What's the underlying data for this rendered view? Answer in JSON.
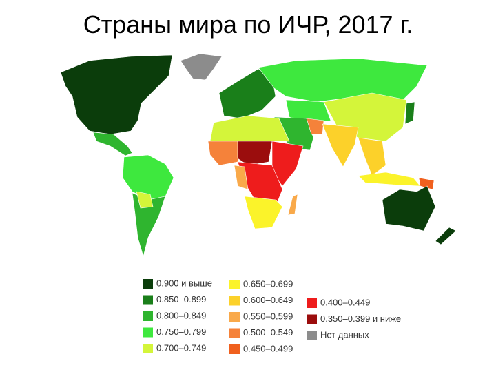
{
  "title": "Страны мира по ИЧР, 2017 г.",
  "legend": [
    {
      "label": "0.900 и выше",
      "color": "#0b3d0b"
    },
    {
      "label": "0.850–0.899",
      "color": "#1a7f1a"
    },
    {
      "label": "0.800–0.849",
      "color": "#2fb52f"
    },
    {
      "label": "0.750–0.799",
      "color": "#3ee83e"
    },
    {
      "label": "0.700–0.749",
      "color": "#d4f53a"
    },
    {
      "label": "0.650–0.699",
      "color": "#fbf32a"
    },
    {
      "label": "0.600–0.649",
      "color": "#fcd12a"
    },
    {
      "label": "0.550–0.599",
      "color": "#f9a94a"
    },
    {
      "label": "0.500–0.549",
      "color": "#f5823a"
    },
    {
      "label": "0.450–0.499",
      "color": "#f0601e"
    },
    {
      "label": "0.400–0.449",
      "color": "#ee1c1c"
    },
    {
      "label": "0.350–0.399 и ниже",
      "color": "#9b0d0d"
    },
    {
      "label": "Нет данных",
      "color": "#8c8c8c"
    }
  ]
}
